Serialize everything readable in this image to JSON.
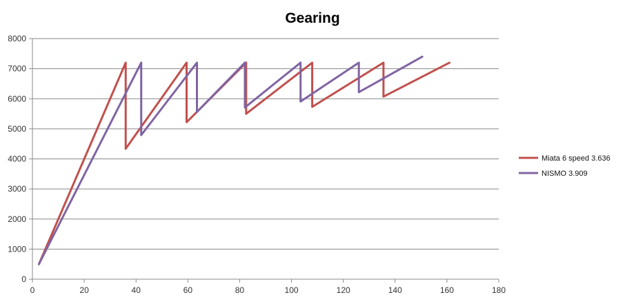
{
  "chart_data": {
    "type": "line",
    "title": "Gearing",
    "xlabel": "",
    "ylabel": "",
    "xlim": [
      0,
      180
    ],
    "ylim": [
      0,
      8000
    ],
    "x_ticks": [
      0,
      20,
      40,
      60,
      80,
      100,
      120,
      140,
      160,
      180
    ],
    "y_ticks": [
      0,
      1000,
      2000,
      3000,
      4000,
      5000,
      6000,
      7000,
      8000
    ],
    "grid": "horizontal",
    "legend_position": "right",
    "series": [
      {
        "name": "Miata 6 speed 3.636",
        "color": "#C0504D",
        "points": [
          [
            2.5,
            500
          ],
          [
            36,
            7200
          ],
          [
            36,
            4340
          ],
          [
            59.5,
            7200
          ],
          [
            59.5,
            5220
          ],
          [
            82.5,
            7200
          ],
          [
            82.5,
            5500
          ],
          [
            108,
            7200
          ],
          [
            108,
            5730
          ],
          [
            135.5,
            7200
          ],
          [
            135.5,
            6070
          ],
          [
            161,
            7200
          ]
        ]
      },
      {
        "name": "NISMO 3.909",
        "color": "#8064A2",
        "points": [
          [
            2.5,
            500
          ],
          [
            42,
            7200
          ],
          [
            42,
            4790
          ],
          [
            63.5,
            7200
          ],
          [
            63.5,
            5560
          ],
          [
            82,
            7200
          ],
          [
            82,
            5710
          ],
          [
            103.5,
            7200
          ],
          [
            103.5,
            5910
          ],
          [
            126,
            7200
          ],
          [
            126,
            6220
          ],
          [
            150.5,
            7400
          ]
        ]
      }
    ]
  }
}
